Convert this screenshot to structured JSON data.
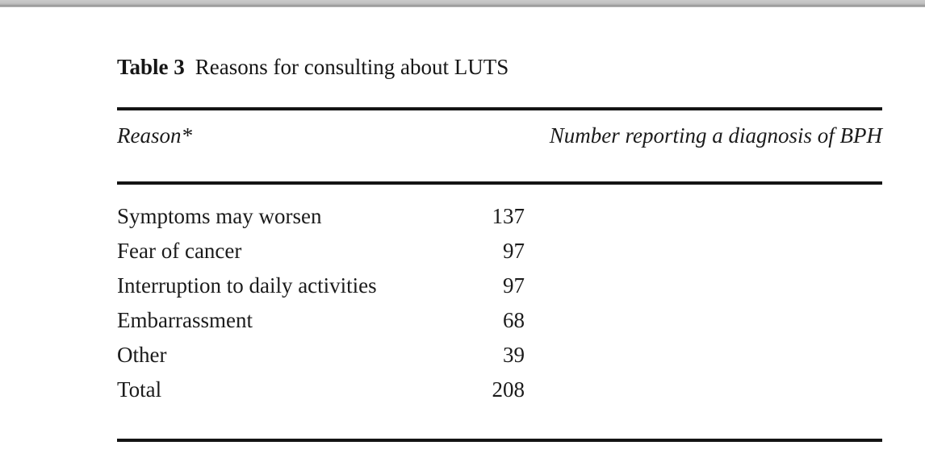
{
  "table": {
    "title_label": "Table 3",
    "title_text": "Reasons for consulting about LUTS",
    "columns": {
      "reason": "Reason*",
      "number": "Number reporting a diagnosis of BPH"
    },
    "rows": [
      {
        "reason": "Symptoms may worsen",
        "value": "137"
      },
      {
        "reason": "Fear of cancer",
        "value": "97"
      },
      {
        "reason": "Interruption to daily activities",
        "value": "97"
      },
      {
        "reason": "Embarrassment",
        "value": "68"
      },
      {
        "reason": "Other",
        "value": "39"
      },
      {
        "reason": "Total",
        "value": "208"
      }
    ]
  },
  "colors": {
    "rule": "#141414",
    "text": "#1b1b1b",
    "top_bar": "#b5b5b5"
  }
}
